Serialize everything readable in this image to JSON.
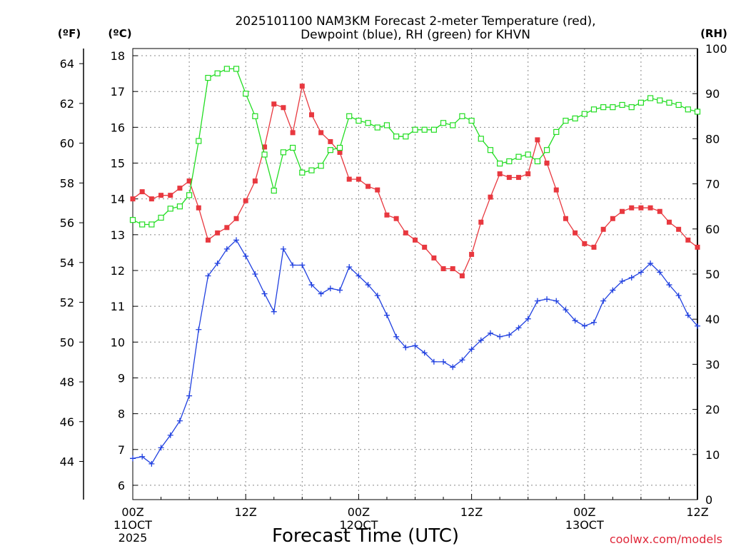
{
  "chart_data": {
    "type": "line",
    "title_line1": "2025101100 NAM3KM Forecast 2-meter Temperature (red),",
    "title_line2": "Dewpoint (blue), RH (green) for KHVN",
    "xlabel": "Forecast Time (UTC)",
    "credit": "coolwx.com/models",
    "unit_f": "(ºF)",
    "unit_c": "(ºC)",
    "unit_rh": "(RH)",
    "x_hours_range": [
      0,
      60
    ],
    "x_ticks": [
      {
        "hour": 0,
        "lines": [
          "00Z",
          "11OCT",
          "2025"
        ]
      },
      {
        "hour": 12,
        "lines": [
          "12Z"
        ]
      },
      {
        "hour": 24,
        "lines": [
          "00Z",
          "12OCT"
        ]
      },
      {
        "hour": 36,
        "lines": [
          "12Z"
        ]
      },
      {
        "hour": 48,
        "lines": [
          "00Z",
          "13OCT"
        ]
      },
      {
        "hour": 60,
        "lines": [
          "12Z"
        ]
      }
    ],
    "ylim_c": [
      5.6,
      18.2
    ],
    "yticks_c": [
      "6",
      "7",
      "8",
      "9",
      "10",
      "11",
      "12",
      "13",
      "14",
      "15",
      "16",
      "17",
      "18"
    ],
    "yticks_f": [
      "44",
      "46",
      "48",
      "50",
      "52",
      "54",
      "56",
      "58",
      "60",
      "62",
      "64"
    ],
    "ylim_rh": [
      0,
      100
    ],
    "yticks_rh": [
      "0",
      "10",
      "20",
      "30",
      "40",
      "50",
      "60",
      "70",
      "80",
      "90",
      "100"
    ],
    "colors": {
      "temperature": "#e8383f",
      "dewpoint": "#2040e0",
      "rh": "#22dd22",
      "grid": "#888888"
    },
    "x_hours": [
      0,
      1,
      2,
      3,
      4,
      5,
      6,
      7,
      8,
      9,
      10,
      11,
      12,
      13,
      14,
      15,
      16,
      17,
      18,
      19,
      20,
      21,
      22,
      23,
      24,
      25,
      26,
      27,
      28,
      29,
      30,
      31,
      32,
      33,
      34,
      35,
      36,
      37,
      38,
      39,
      40,
      41,
      42,
      43,
      44,
      45,
      46,
      47,
      48,
      49,
      50,
      51,
      52,
      53,
      54,
      55,
      56,
      57,
      58,
      59,
      60
    ],
    "series": [
      {
        "name": "Temperature",
        "unit": "C",
        "marker": "filled-square",
        "values": [
          14.0,
          14.2,
          14.0,
          14.1,
          14.1,
          14.3,
          14.5,
          13.75,
          12.85,
          13.05,
          13.2,
          13.45,
          13.95,
          14.5,
          15.45,
          16.65,
          16.55,
          15.85,
          17.15,
          16.35,
          15.85,
          15.6,
          15.3,
          14.55,
          14.55,
          14.35,
          14.25,
          13.55,
          13.45,
          13.05,
          12.85,
          12.65,
          12.35,
          12.05,
          12.05,
          11.85,
          12.45,
          13.35,
          14.05,
          14.7,
          14.6,
          14.6,
          14.7,
          15.65,
          15.0,
          14.25,
          13.45,
          13.05,
          12.75,
          12.65,
          13.15,
          13.45,
          13.65,
          13.75,
          13.75,
          13.75,
          13.65,
          13.35,
          13.15,
          12.85,
          12.65
        ]
      },
      {
        "name": "Dewpoint",
        "unit": "C",
        "marker": "plus",
        "values": [
          6.75,
          6.8,
          6.6,
          7.05,
          7.4,
          7.8,
          8.5,
          10.35,
          11.85,
          12.2,
          12.6,
          12.85,
          12.4,
          11.9,
          11.35,
          10.85,
          12.6,
          12.15,
          12.15,
          11.6,
          11.35,
          11.5,
          11.45,
          12.1,
          11.85,
          11.6,
          11.3,
          10.75,
          10.15,
          9.85,
          9.9,
          9.7,
          9.45,
          9.45,
          9.3,
          9.5,
          9.8,
          10.05,
          10.25,
          10.15,
          10.2,
          10.4,
          10.65,
          11.15,
          11.2,
          11.15,
          10.9,
          10.6,
          10.45,
          10.55,
          11.15,
          11.45,
          11.7,
          11.8,
          11.95,
          12.2,
          11.95,
          11.6,
          11.3,
          10.75,
          10.45
        ]
      },
      {
        "name": "RH",
        "unit": "%",
        "marker": "open-square",
        "values": [
          62,
          61,
          61,
          62.5,
          64.5,
          65,
          67.5,
          79.5,
          93.5,
          94.5,
          95.5,
          95.5,
          90,
          85,
          76.5,
          68.5,
          77,
          78,
          72.5,
          73,
          74,
          77.5,
          78,
          85,
          84,
          83.5,
          82.5,
          83,
          80.5,
          80.5,
          82,
          82,
          82,
          83.5,
          83,
          85,
          84,
          80,
          77.5,
          74.5,
          75,
          76,
          76.5,
          75,
          77.5,
          81.5,
          84,
          84.5,
          85.5,
          86.5,
          87,
          87,
          87.5,
          87,
          88,
          89,
          88.5,
          88,
          87.5,
          86.5,
          86
        ]
      }
    ]
  }
}
